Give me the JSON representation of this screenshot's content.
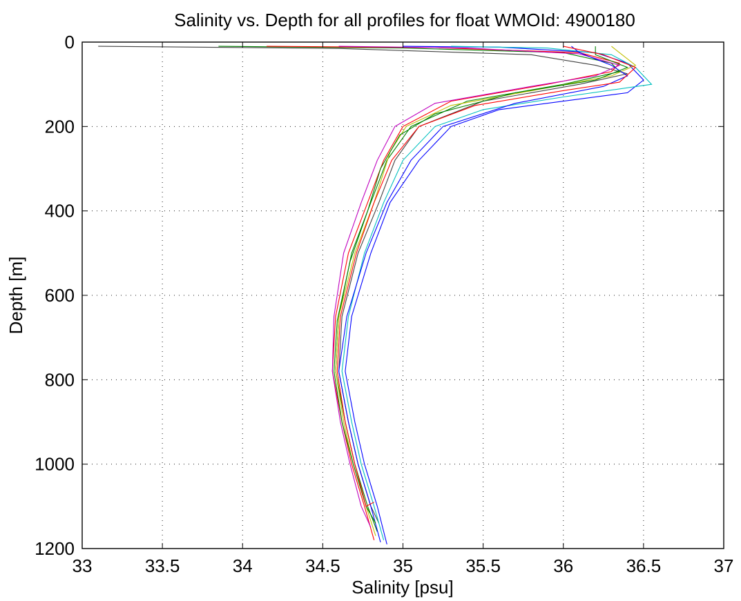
{
  "chart_data": {
    "type": "line",
    "title": "Salinity vs. Depth for all profiles for float WMOId: 4900180",
    "xlabel": "Salinity [psu]",
    "ylabel": "Depth [m]",
    "xlim": [
      33,
      37
    ],
    "ylim": [
      0,
      1200
    ],
    "y_reversed": true,
    "grid": true,
    "legend": "none",
    "x_ticks": [
      33,
      33.5,
      34,
      34.5,
      35,
      35.5,
      36,
      36.5,
      37
    ],
    "x_tick_labels": [
      "33",
      "33.5",
      "34",
      "34.5",
      "35",
      "35.5",
      "36",
      "36.5",
      "37"
    ],
    "y_ticks": [
      0,
      200,
      400,
      600,
      800,
      1000,
      1200
    ],
    "y_tick_labels": [
      "0",
      "200",
      "400",
      "600",
      "800",
      "1000",
      "1200"
    ],
    "colors": [
      "#0000ff",
      "#008000",
      "#ff0000",
      "#00bfbf",
      "#bf00bf",
      "#bfbf00",
      "#404040"
    ],
    "series": [
      {
        "color": "#404040",
        "points": [
          [
            33.1,
            10
          ],
          [
            34.6,
            15
          ],
          [
            35.8,
            30
          ],
          [
            36.2,
            55
          ],
          [
            36.4,
            75
          ],
          [
            36.1,
            100
          ],
          [
            35.5,
            140
          ],
          [
            35.1,
            200
          ],
          [
            34.95,
            280
          ],
          [
            34.85,
            380
          ],
          [
            34.72,
            500
          ],
          [
            34.62,
            650
          ],
          [
            34.6,
            780
          ],
          [
            34.66,
            900
          ],
          [
            34.72,
            1000
          ],
          [
            34.8,
            1100
          ],
          [
            34.85,
            1140
          ]
        ]
      },
      {
        "color": "#008000",
        "points": [
          [
            33.85,
            10
          ],
          [
            35.0,
            14
          ],
          [
            36.0,
            25
          ],
          [
            36.3,
            50
          ],
          [
            36.35,
            70
          ],
          [
            36.0,
            100
          ],
          [
            35.4,
            140
          ],
          [
            35.05,
            200
          ],
          [
            34.9,
            280
          ],
          [
            34.8,
            380
          ],
          [
            34.68,
            500
          ],
          [
            34.6,
            650
          ],
          [
            34.58,
            780
          ],
          [
            34.64,
            900
          ],
          [
            34.7,
            1000
          ],
          [
            34.78,
            1100
          ],
          [
            34.84,
            1160
          ]
        ]
      },
      {
        "color": "#ff0000",
        "points": [
          [
            34.15,
            10
          ],
          [
            35.2,
            13
          ],
          [
            36.1,
            25
          ],
          [
            36.35,
            50
          ],
          [
            36.3,
            70
          ],
          [
            35.9,
            100
          ],
          [
            35.3,
            140
          ],
          [
            35.0,
            200
          ],
          [
            34.88,
            280
          ],
          [
            34.78,
            380
          ],
          [
            34.66,
            500
          ],
          [
            34.58,
            650
          ],
          [
            34.56,
            780
          ],
          [
            34.62,
            900
          ],
          [
            34.68,
            1000
          ],
          [
            34.76,
            1100
          ],
          [
            34.82,
            1180
          ]
        ]
      },
      {
        "color": "#0000ff",
        "points": [
          [
            35.0,
            10
          ],
          [
            35.6,
            12
          ],
          [
            36.2,
            25
          ],
          [
            36.4,
            50
          ],
          [
            36.5,
            90
          ],
          [
            36.4,
            120
          ],
          [
            35.6,
            160
          ],
          [
            35.3,
            200
          ],
          [
            35.1,
            280
          ],
          [
            34.92,
            380
          ],
          [
            34.8,
            500
          ],
          [
            34.68,
            650
          ],
          [
            34.64,
            780
          ],
          [
            34.7,
            900
          ],
          [
            34.76,
            1000
          ],
          [
            34.84,
            1100
          ],
          [
            34.9,
            1190
          ]
        ]
      },
      {
        "color": "#00bfbf",
        "points": [
          [
            35.3,
            10
          ],
          [
            35.9,
            14
          ],
          [
            36.3,
            30
          ],
          [
            36.45,
            60
          ],
          [
            36.55,
            100
          ],
          [
            36.0,
            130
          ],
          [
            35.5,
            160
          ],
          [
            35.2,
            200
          ],
          [
            35.0,
            280
          ],
          [
            34.88,
            380
          ],
          [
            34.76,
            500
          ],
          [
            34.66,
            650
          ],
          [
            34.62,
            780
          ],
          [
            34.68,
            900
          ],
          [
            34.74,
            1000
          ],
          [
            34.82,
            1100
          ],
          [
            34.88,
            1180
          ]
        ]
      },
      {
        "color": "#bf00bf",
        "points": [
          [
            34.6,
            10
          ],
          [
            35.4,
            14
          ],
          [
            36.1,
            28
          ],
          [
            36.35,
            55
          ],
          [
            36.2,
            80
          ],
          [
            35.8,
            105
          ],
          [
            35.2,
            145
          ],
          [
            34.95,
            200
          ],
          [
            34.84,
            280
          ],
          [
            34.74,
            380
          ],
          [
            34.63,
            500
          ],
          [
            34.57,
            650
          ],
          [
            34.56,
            780
          ],
          [
            34.61,
            900
          ],
          [
            34.67,
            1000
          ],
          [
            34.74,
            1100
          ],
          [
            34.8,
            1150
          ]
        ]
      },
      {
        "color": "#bfbf00",
        "points": [
          [
            36.3,
            10
          ],
          [
            36.35,
            25
          ],
          [
            36.45,
            55
          ],
          [
            36.3,
            80
          ],
          [
            35.95,
            105
          ],
          [
            35.3,
            150
          ],
          [
            35.02,
            200
          ],
          [
            34.92,
            260
          ],
          [
            34.82,
            380
          ],
          [
            34.7,
            500
          ],
          [
            34.6,
            650
          ],
          [
            34.58,
            780
          ],
          [
            34.63,
            900
          ],
          [
            34.69,
            1000
          ],
          [
            34.77,
            1100
          ],
          [
            34.83,
            1170
          ]
        ]
      },
      {
        "color": "#0000ff",
        "points": [
          [
            36.05,
            10
          ],
          [
            36.1,
            25
          ],
          [
            36.3,
            55
          ],
          [
            36.4,
            80
          ],
          [
            36.25,
            105
          ],
          [
            35.7,
            145
          ],
          [
            35.25,
            200
          ],
          [
            35.05,
            280
          ],
          [
            34.9,
            380
          ],
          [
            34.77,
            500
          ],
          [
            34.65,
            650
          ],
          [
            34.6,
            780
          ],
          [
            34.66,
            900
          ],
          [
            34.72,
            1000
          ],
          [
            34.8,
            1100
          ],
          [
            34.86,
            1185
          ]
        ]
      },
      {
        "color": "#008000",
        "points": [
          [
            36.2,
            10
          ],
          [
            36.2,
            30
          ],
          [
            36.4,
            60
          ],
          [
            36.2,
            90
          ],
          [
            35.7,
            120
          ],
          [
            35.2,
            170
          ],
          [
            34.98,
            220
          ],
          [
            34.86,
            300
          ],
          [
            34.78,
            400
          ],
          [
            34.67,
            520
          ],
          [
            34.59,
            660
          ],
          [
            34.57,
            780
          ],
          [
            34.62,
            900
          ],
          [
            34.69,
            1000
          ],
          [
            34.77,
            1100
          ],
          [
            34.83,
            1140
          ]
        ]
      },
      {
        "color": "#ff0000",
        "points": [
          [
            36.0,
            10
          ],
          [
            36.25,
            30
          ],
          [
            36.45,
            60
          ],
          [
            36.35,
            95
          ],
          [
            36.0,
            115
          ],
          [
            35.45,
            150
          ],
          [
            35.1,
            200
          ],
          [
            34.93,
            280
          ],
          [
            34.82,
            380
          ],
          [
            34.71,
            500
          ],
          [
            34.61,
            650
          ],
          [
            34.59,
            780
          ],
          [
            34.64,
            900
          ],
          [
            34.7,
            1000
          ],
          [
            34.77,
            1100
          ],
          [
            34.82,
            1090
          ]
        ]
      }
    ]
  }
}
